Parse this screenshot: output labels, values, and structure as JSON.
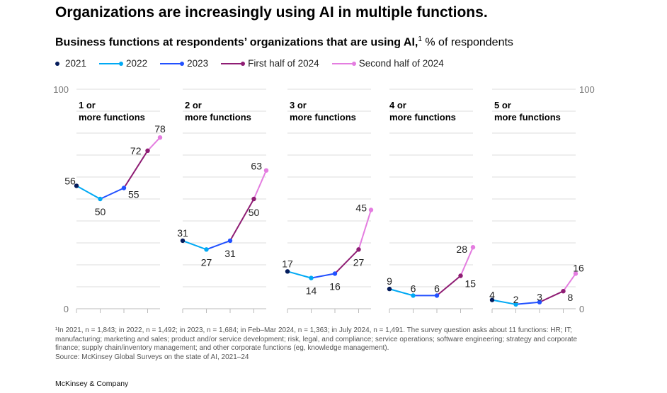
{
  "title": "Organizations are increasingly using AI in multiple functions.",
  "subtitle": {
    "bold": "Business functions at respondents’ organizations that are using AI,",
    "sup": "1",
    "rest": " % of respondents"
  },
  "legend": [
    {
      "label": "2021",
      "color": "#051c5c"
    },
    {
      "label": "2022",
      "color": "#00a9f4"
    },
    {
      "label": "2023",
      "color": "#2251ff"
    },
    {
      "label": "First half of 2024",
      "color": "#8f1d74"
    },
    {
      "label": "Second half of 2024",
      "color": "#e47de0"
    }
  ],
  "chart_data": {
    "type": "line",
    "ylim": [
      0,
      100
    ],
    "y_tick_labels": [
      "100",
      "0"
    ],
    "grid": true,
    "legend_placement": "top-left",
    "x": [
      "2021",
      "2022",
      "2023",
      "First half of 2024",
      "Second half of 2024"
    ],
    "panels": [
      {
        "title": "1 or more functions",
        "values": [
          56,
          50,
          55,
          72,
          78
        ]
      },
      {
        "title": "2 or more functions",
        "values": [
          31,
          27,
          31,
          50,
          63
        ]
      },
      {
        "title": "3 or more functions",
        "values": [
          17,
          14,
          16,
          27,
          45
        ]
      },
      {
        "title": "4 or more functions",
        "values": [
          9,
          6,
          6,
          15,
          28
        ]
      },
      {
        "title": "5 or more functions",
        "values": [
          4,
          2,
          3,
          8,
          16
        ]
      }
    ]
  },
  "footnote": "¹In 2021, n = 1,843; in 2022, n = 1,492; in 2023, n = 1,684; in Feb–Mar 2024, n = 1,363; in July 2024, n = 1,491. The survey question asks about 11 functions: HR; IT; manufacturing; marketing and sales; product and/or service development; risk, legal, and compliance; service operations; software engineering; strategy and corporate finance; supply chain/inventory management; and other corporate functions (eg, knowledge management).",
  "source": "Source: McKinsey Global Surveys on the state of AI, 2021–24",
  "brand": "McKinsey & Company"
}
